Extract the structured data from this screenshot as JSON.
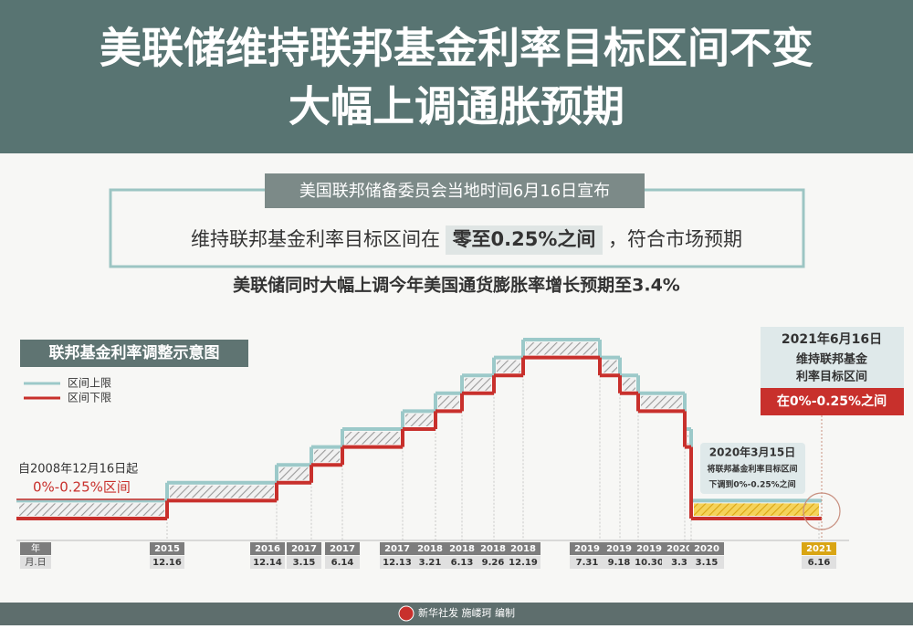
{
  "header": {
    "title_lines": [
      "美联储维持联邦基金利率目标区间不变",
      "大幅上调通胀预期"
    ]
  },
  "announcement": {
    "tag": "美国联邦储备委员会当地时间6月16日宣布",
    "text_before": "维持联邦基金利率目标区间在",
    "highlight": "零至0.25%之间",
    "text_after": "，符合市场预期",
    "subline": "美联储同时大幅上调今年美国通货膨胀率增长预期至3.4%"
  },
  "chart_data": {
    "type": "step",
    "title": "联邦基金利率调整示意图",
    "axis_header": {
      "year": "年",
      "date": "月.日"
    },
    "years": [
      null,
      "2015",
      "2016",
      "2017",
      "2017",
      "2017",
      "2018",
      "2018",
      "2018",
      "2018",
      "2019",
      "2019",
      "2019",
      "2020",
      "2020",
      "2021"
    ],
    "dates": [
      null,
      "12.16",
      "12.14",
      "3.15",
      "6.14",
      "12.13",
      "3.21",
      "6.13",
      "9.26",
      "12.19",
      "7.31",
      "9.18",
      "10.30",
      "3.3",
      "3.15",
      "6.16"
    ],
    "series": [
      {
        "name": "区间上限",
        "color": "#9cc9c9",
        "values": [
          0.25,
          0.5,
          0.75,
          1,
          1.25,
          1.5,
          1.75,
          2,
          2.25,
          2.5,
          2.25,
          2,
          1.75,
          1.25,
          0.25,
          0.25
        ]
      },
      {
        "name": "区间下限",
        "color": "#c8302c",
        "values": [
          0,
          0.25,
          0.5,
          0.75,
          1,
          1.25,
          1.5,
          1.75,
          2,
          2.25,
          2,
          1.75,
          1.5,
          1,
          0,
          0
        ]
      }
    ],
    "annotations": {
      "start_label": "自2008年12月16日起",
      "start_range": "0%-0.25%区间",
      "cut_date": "2020年3月15日",
      "cut_line1": "将联邦基金利率目标区间",
      "cut_line2": "下调到0%-0.25%之间",
      "now_date": "2021年6月16日",
      "now_line1": "维持联邦基金",
      "now_line2": "利率目标区间",
      "now_range": "在0%-0.25%之间"
    }
  },
  "footer": {
    "credit": "新华社发 施嵝珂 编制"
  }
}
